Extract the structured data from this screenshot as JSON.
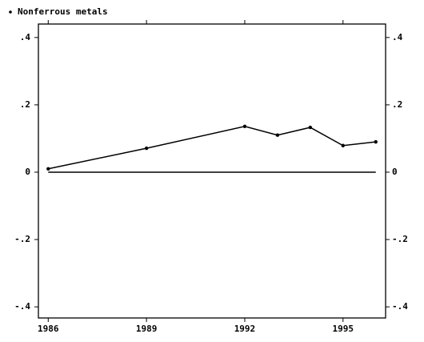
{
  "chart_data": {
    "type": "line",
    "x": [
      1986,
      1989,
      1992,
      1993,
      1994,
      1995,
      1996
    ],
    "series": [
      {
        "name": "Nonferrous metals",
        "color": "#000000",
        "values": [
          0.01,
          0.071,
          0.136,
          0.11,
          0.133,
          0.079,
          0.09
        ]
      }
    ],
    "xlim": [
      1985.7,
      1996.3
    ],
    "xticks": [
      1986,
      1989,
      1992,
      1995
    ],
    "ylim": [
      -0.433,
      0.44
    ],
    "yticks": [
      {
        "value": 0.4,
        "label": ".4"
      },
      {
        "value": 0.2,
        "label": ".2"
      },
      0,
      {
        "value": -0.2,
        "label": "-.2"
      },
      {
        "value": -0.4,
        "label": "-.4"
      }
    ],
    "reference_line": 0,
    "legend": "top-left",
    "mirror_axes": true
  }
}
